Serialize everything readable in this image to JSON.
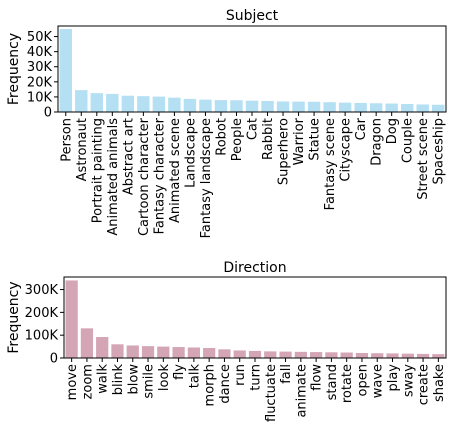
{
  "chart_data": [
    {
      "type": "bar",
      "title": "Subject",
      "xlabel": "",
      "ylabel": "Frequency",
      "ylim": [
        0,
        57000
      ],
      "yticks": [
        0,
        10000,
        20000,
        30000,
        40000,
        50000
      ],
      "ytick_labels": [
        "0",
        "10K",
        "20K",
        "30K",
        "40K",
        "50K"
      ],
      "color": "#b5e0f3",
      "grid": false,
      "categories": [
        "Person",
        "Astronaut",
        "Portrait painting",
        "Animated animals",
        "Abstract art",
        "Cartoon character",
        "Fantasy character",
        "Animated scene",
        "Landscape",
        "Fantasy landscape",
        "Robot",
        "People",
        "Cat",
        "Rabbit",
        "Superhero",
        "Warrior",
        "Statue",
        "Fantasy scene",
        "Cityscape",
        "Car",
        "Dragon",
        "Dog",
        "Couple",
        "Street scene",
        "Spaceship"
      ],
      "values": [
        55000,
        14500,
        12500,
        12000,
        10800,
        10500,
        10200,
        9500,
        8700,
        8200,
        7900,
        7800,
        7500,
        7300,
        7000,
        6900,
        6800,
        6500,
        6200,
        6000,
        5800,
        5600,
        5300,
        5000,
        4800
      ]
    },
    {
      "type": "bar",
      "title": "Direction",
      "xlabel": "",
      "ylabel": "Frequency",
      "ylim": [
        0,
        355000
      ],
      "yticks": [
        0,
        100000,
        200000,
        300000
      ],
      "ytick_labels": [
        "0",
        "100K",
        "200K",
        "300K"
      ],
      "color": "#d4a5b5",
      "grid": false,
      "categories": [
        "move",
        "zoom",
        "walk",
        "blink",
        "blow",
        "smile",
        "look",
        "fly",
        "talk",
        "morph",
        "dance",
        "run",
        "turn",
        "fluctuate",
        "fall",
        "animate",
        "flow",
        "stand",
        "rotate",
        "open",
        "wave",
        "play",
        "sway",
        "create",
        "shake"
      ],
      "values": [
        340000,
        130000,
        92000,
        60000,
        55000,
        52000,
        50000,
        48000,
        46000,
        44000,
        38000,
        33000,
        31000,
        29000,
        28000,
        27000,
        26000,
        25000,
        24000,
        22000,
        21000,
        20000,
        19000,
        18000,
        17000
      ]
    }
  ]
}
